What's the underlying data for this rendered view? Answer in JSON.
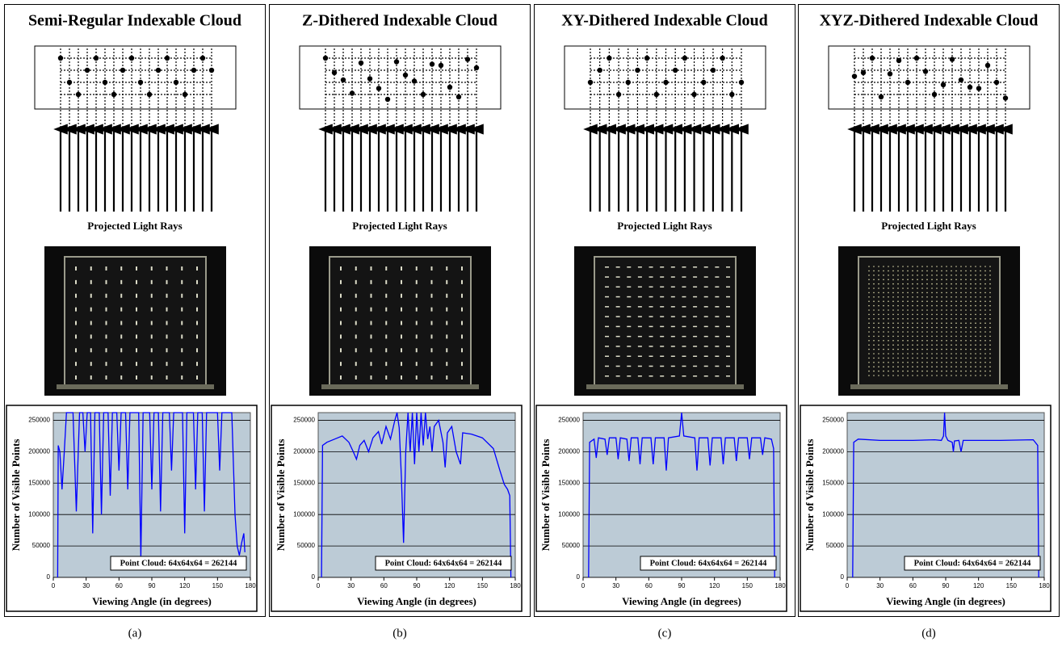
{
  "panels": [
    {
      "title": "Semi-Regular Indexable Cloud",
      "rays_label": "Projected Light Rays",
      "caption": "(a)"
    },
    {
      "title": "Z-Dithered Indexable Cloud",
      "rays_label": "Projected Light Rays",
      "caption": "(b)"
    },
    {
      "title": "XY-Dithered Indexable Cloud",
      "rays_label": "Projected Light Rays",
      "caption": "(c)"
    },
    {
      "title": "XYZ-Dithered Indexable Cloud",
      "rays_label": "Projected Light Rays",
      "caption": "(d)"
    }
  ],
  "chart_data": [
    {
      "type": "line",
      "x_label": "Viewing Angle (in degrees)",
      "y_label": "Number of Visible Points",
      "annotation": "Point Cloud: 64x64x64 = 262144",
      "color": "#0000ff",
      "background": "#bccbd6",
      "grid": true,
      "xlim": [
        0,
        180
      ],
      "xticks": [
        0,
        30,
        60,
        90,
        120,
        150,
        180
      ],
      "ylim": [
        0,
        262144
      ],
      "yticks": [
        0,
        50000,
        100000,
        150000,
        200000,
        250000
      ],
      "x": [
        4,
        4.5,
        6,
        8,
        10,
        12,
        18,
        21,
        24,
        27,
        29,
        31,
        34,
        36,
        38,
        42,
        44,
        46,
        50,
        52,
        54,
        58,
        60,
        62,
        66,
        68,
        70,
        78,
        80,
        82,
        88,
        90,
        92,
        96,
        98,
        100,
        106,
        108,
        110,
        118,
        120,
        122,
        128,
        130,
        132,
        136,
        138,
        140,
        150,
        152,
        154,
        163,
        166,
        168,
        170,
        172,
        174,
        175
      ],
      "values": [
        0,
        210000,
        200000,
        140000,
        200000,
        262144,
        262144,
        105000,
        262144,
        262144,
        200000,
        262144,
        262144,
        70000,
        262144,
        262144,
        100000,
        262144,
        262144,
        130000,
        262144,
        262144,
        170000,
        262144,
        262144,
        140000,
        262144,
        262144,
        30000,
        262144,
        262144,
        140000,
        262144,
        262144,
        105000,
        262144,
        262144,
        170000,
        262144,
        262144,
        70000,
        262144,
        262144,
        140000,
        262144,
        262144,
        105000,
        262144,
        262144,
        170000,
        262144,
        262144,
        100000,
        50000,
        35000,
        55000,
        70000,
        40000
      ]
    },
    {
      "type": "line",
      "x_label": "Viewing Angle (in degrees)",
      "y_label": "Number of Visible Points",
      "annotation": "Point Cloud: 64x64x64 = 262144",
      "color": "#0000ff",
      "background": "#bccbd6",
      "grid": true,
      "xlim": [
        0,
        180
      ],
      "xticks": [
        0,
        30,
        60,
        90,
        120,
        150,
        180
      ],
      "ylim": [
        0,
        262144
      ],
      "yticks": [
        0,
        50000,
        100000,
        150000,
        200000,
        250000
      ],
      "x": [
        3,
        4,
        8,
        15,
        22,
        28,
        32,
        35,
        38,
        42,
        46,
        50,
        55,
        58,
        62,
        66,
        70,
        72,
        74,
        76,
        78,
        80,
        82,
        84,
        86,
        88,
        90,
        92,
        94,
        96,
        98,
        100,
        102,
        104,
        106,
        110,
        114,
        116,
        118,
        122,
        126,
        130,
        132,
        140,
        150,
        160,
        166,
        170,
        173,
        175,
        176
      ],
      "values": [
        0,
        210000,
        215000,
        220000,
        225000,
        215000,
        200000,
        188000,
        210000,
        218000,
        200000,
        222000,
        232000,
        212000,
        240000,
        220000,
        250000,
        262144,
        238000,
        160000,
        55000,
        200000,
        262144,
        200000,
        262144,
        180000,
        262144,
        200000,
        262144,
        210000,
        262144,
        220000,
        240000,
        200000,
        240000,
        250000,
        215000,
        175000,
        230000,
        240000,
        200000,
        180000,
        230000,
        228000,
        222000,
        205000,
        170000,
        148000,
        140000,
        130000,
        0
      ]
    },
    {
      "type": "line",
      "x_label": "Viewing Angle (in degrees)",
      "y_label": "Number of Visible Points",
      "annotation": "Point Cloud: 64x64x64 = 262144",
      "color": "#0000ff",
      "background": "#bccbd6",
      "grid": true,
      "xlim": [
        0,
        180
      ],
      "xticks": [
        0,
        30,
        60,
        90,
        120,
        150,
        180
      ],
      "ylim": [
        0,
        262144
      ],
      "yticks": [
        0,
        50000,
        100000,
        150000,
        200000,
        250000
      ],
      "x": [
        5,
        6,
        10,
        12,
        14,
        20,
        22,
        24,
        30,
        32,
        34,
        40,
        42,
        44,
        50,
        52,
        54,
        62,
        64,
        66,
        74,
        76,
        78,
        88,
        90,
        92,
        102,
        104,
        106,
        114,
        116,
        118,
        126,
        128,
        130,
        138,
        140,
        142,
        150,
        152,
        154,
        162,
        164,
        166,
        172,
        174,
        175
      ],
      "values": [
        0,
        215000,
        220000,
        190000,
        222000,
        220000,
        195000,
        222000,
        222000,
        188000,
        222000,
        220000,
        185000,
        222000,
        222000,
        180000,
        222000,
        222000,
        180000,
        222000,
        222000,
        170000,
        222000,
        225000,
        262144,
        225000,
        222000,
        170000,
        222000,
        222000,
        178000,
        222000,
        222000,
        180000,
        222000,
        222000,
        185000,
        222000,
        222000,
        188000,
        222000,
        222000,
        195000,
        222000,
        220000,
        205000,
        0
      ]
    },
    {
      "type": "line",
      "x_label": "Viewing Angle (in degrees)",
      "y_label": "Number of Visible Points",
      "annotation": "Point Cloud: 64x64x64 = 262144",
      "color": "#0000ff",
      "background": "#bccbd6",
      "grid": true,
      "xlim": [
        0,
        180
      ],
      "xticks": [
        0,
        30,
        60,
        90,
        120,
        150,
        180
      ],
      "ylim": [
        0,
        262144
      ],
      "yticks": [
        0,
        50000,
        100000,
        150000,
        200000,
        250000
      ],
      "x": [
        5,
        6,
        10,
        30,
        60,
        80,
        86,
        88,
        89,
        90,
        92,
        96,
        97,
        98,
        102,
        104,
        106,
        140,
        170,
        174,
        175
      ],
      "values": [
        0,
        215000,
        220000,
        218000,
        218000,
        219000,
        218000,
        225000,
        262144,
        225000,
        218000,
        215000,
        200000,
        217000,
        218000,
        200000,
        218000,
        218000,
        219000,
        210000,
        0
      ]
    }
  ]
}
